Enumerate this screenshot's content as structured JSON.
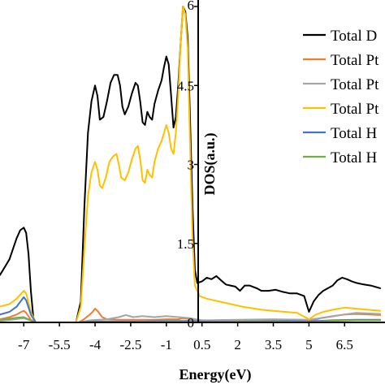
{
  "chart_data": {
    "type": "line",
    "xlabel": "Energy(eV)",
    "ylabel": "DOS(a.u.)",
    "xlim": [
      -8.0,
      8.2
    ],
    "ylim": [
      0,
      6
    ],
    "x_ticks": [
      "-7",
      "-5.5",
      "-4",
      "-2.5",
      "-1",
      "0.5",
      "2",
      "3.5",
      "5",
      "6.5"
    ],
    "x_tick_values": [
      -7,
      -5.5,
      -4,
      -2.5,
      -1,
      0.5,
      2,
      3.5,
      5,
      6.5
    ],
    "y_ticks": [
      "0",
      "1.5",
      "3",
      "4.5",
      "6"
    ],
    "y_tick_values": [
      0,
      1.5,
      3,
      4.5,
      6
    ],
    "legend_position": "top-right",
    "series": [
      {
        "name": "Total D",
        "color": "#000000",
        "points": [
          [
            -8.0,
            0.9
          ],
          [
            -7.8,
            1.05
          ],
          [
            -7.6,
            1.2
          ],
          [
            -7.45,
            1.4
          ],
          [
            -7.3,
            1.6
          ],
          [
            -7.15,
            1.75
          ],
          [
            -7.0,
            1.8
          ],
          [
            -6.9,
            1.7
          ],
          [
            -6.8,
            1.3
          ],
          [
            -6.7,
            0.6
          ],
          [
            -6.6,
            0.1
          ],
          [
            -6.5,
            0.0
          ],
          [
            -5.0,
            0.0
          ],
          [
            -4.8,
            0.0
          ],
          [
            -4.6,
            0.4
          ],
          [
            -4.45,
            2.2
          ],
          [
            -4.3,
            3.6
          ],
          [
            -4.15,
            4.2
          ],
          [
            -4.0,
            4.5
          ],
          [
            -3.9,
            4.3
          ],
          [
            -3.8,
            3.85
          ],
          [
            -3.65,
            3.9
          ],
          [
            -3.5,
            4.2
          ],
          [
            -3.35,
            4.55
          ],
          [
            -3.2,
            4.7
          ],
          [
            -3.05,
            4.7
          ],
          [
            -2.95,
            4.5
          ],
          [
            -2.85,
            4.1
          ],
          [
            -2.75,
            3.95
          ],
          [
            -2.6,
            4.1
          ],
          [
            -2.45,
            4.35
          ],
          [
            -2.3,
            4.55
          ],
          [
            -2.2,
            4.5
          ],
          [
            -2.1,
            4.2
          ],
          [
            -2.0,
            3.8
          ],
          [
            -1.9,
            3.75
          ],
          [
            -1.8,
            4.0
          ],
          [
            -1.7,
            3.9
          ],
          [
            -1.6,
            3.85
          ],
          [
            -1.5,
            4.15
          ],
          [
            -1.35,
            4.4
          ],
          [
            -1.2,
            4.6
          ],
          [
            -1.1,
            4.85
          ],
          [
            -1.0,
            5.05
          ],
          [
            -0.9,
            4.9
          ],
          [
            -0.8,
            4.3
          ],
          [
            -0.7,
            3.7
          ],
          [
            -0.6,
            3.9
          ],
          [
            -0.5,
            4.5
          ],
          [
            -0.4,
            5.3
          ],
          [
            -0.3,
            6.0
          ],
          [
            -0.2,
            5.9
          ],
          [
            -0.1,
            5.4
          ],
          [
            0.0,
            3.8
          ],
          [
            0.1,
            2.2
          ],
          [
            0.2,
            1.0
          ],
          [
            0.3,
            0.75
          ],
          [
            0.5,
            0.78
          ],
          [
            0.7,
            0.85
          ],
          [
            0.9,
            0.82
          ],
          [
            1.1,
            0.88
          ],
          [
            1.3,
            0.8
          ],
          [
            1.5,
            0.72
          ],
          [
            1.7,
            0.7
          ],
          [
            1.9,
            0.68
          ],
          [
            2.1,
            0.6
          ],
          [
            2.3,
            0.7
          ],
          [
            2.5,
            0.7
          ],
          [
            2.8,
            0.65
          ],
          [
            3.0,
            0.6
          ],
          [
            3.3,
            0.6
          ],
          [
            3.6,
            0.62
          ],
          [
            3.9,
            0.58
          ],
          [
            4.2,
            0.55
          ],
          [
            4.5,
            0.55
          ],
          [
            4.8,
            0.5
          ],
          [
            5.0,
            0.2
          ],
          [
            5.2,
            0.4
          ],
          [
            5.4,
            0.52
          ],
          [
            5.6,
            0.6
          ],
          [
            5.8,
            0.65
          ],
          [
            6.0,
            0.7
          ],
          [
            6.2,
            0.8
          ],
          [
            6.4,
            0.85
          ],
          [
            6.6,
            0.82
          ],
          [
            6.8,
            0.78
          ],
          [
            7.0,
            0.75
          ],
          [
            7.3,
            0.72
          ],
          [
            7.6,
            0.7
          ],
          [
            8.0,
            0.65
          ]
        ]
      },
      {
        "name": "Total Pt",
        "color": "#ed7d31",
        "points": [
          [
            -8.0,
            0.06
          ],
          [
            -7.6,
            0.1
          ],
          [
            -7.3,
            0.15
          ],
          [
            -7.1,
            0.2
          ],
          [
            -7.0,
            0.22
          ],
          [
            -6.9,
            0.18
          ],
          [
            -6.7,
            0.05
          ],
          [
            -6.5,
            0.0
          ],
          [
            -4.7,
            0.0
          ],
          [
            -4.5,
            0.05
          ],
          [
            -4.3,
            0.12
          ],
          [
            -4.1,
            0.2
          ],
          [
            -4.0,
            0.26
          ],
          [
            -3.9,
            0.22
          ],
          [
            -3.7,
            0.1
          ],
          [
            -3.5,
            0.06
          ],
          [
            -3.0,
            0.05
          ],
          [
            -2.5,
            0.05
          ],
          [
            -2.0,
            0.05
          ],
          [
            -1.5,
            0.05
          ],
          [
            -1.0,
            0.06
          ],
          [
            -0.5,
            0.06
          ],
          [
            -0.3,
            0.08
          ],
          [
            0.0,
            0.06
          ],
          [
            0.5,
            0.03
          ],
          [
            1.5,
            0.03
          ],
          [
            3.0,
            0.03
          ],
          [
            4.5,
            0.04
          ],
          [
            5.0,
            0.02
          ],
          [
            5.5,
            0.08
          ],
          [
            6.5,
            0.15
          ],
          [
            7.0,
            0.16
          ],
          [
            8.0,
            0.14
          ]
        ]
      },
      {
        "name": "Total Pt",
        "color": "#a5a5a5",
        "points": [
          [
            -8.0,
            0.03
          ],
          [
            -7.5,
            0.05
          ],
          [
            -7.2,
            0.07
          ],
          [
            -7.0,
            0.08
          ],
          [
            -6.8,
            0.05
          ],
          [
            -6.5,
            0.0
          ],
          [
            -4.7,
            0.0
          ],
          [
            -4.2,
            0.04
          ],
          [
            -3.5,
            0.06
          ],
          [
            -3.0,
            0.1
          ],
          [
            -2.7,
            0.14
          ],
          [
            -2.4,
            0.1
          ],
          [
            -2.0,
            0.12
          ],
          [
            -1.5,
            0.1
          ],
          [
            -1.0,
            0.12
          ],
          [
            -0.5,
            0.1
          ],
          [
            0.0,
            0.08
          ],
          [
            0.5,
            0.04
          ],
          [
            2.0,
            0.05
          ],
          [
            3.5,
            0.06
          ],
          [
            5.0,
            0.05
          ],
          [
            6.0,
            0.12
          ],
          [
            7.0,
            0.18
          ],
          [
            8.0,
            0.16
          ]
        ]
      },
      {
        "name": "Total Pt",
        "color": "#ffc000",
        "points": [
          [
            -8.0,
            0.3
          ],
          [
            -7.6,
            0.35
          ],
          [
            -7.3,
            0.45
          ],
          [
            -7.1,
            0.55
          ],
          [
            -7.0,
            0.6
          ],
          [
            -6.9,
            0.55
          ],
          [
            -6.7,
            0.2
          ],
          [
            -6.5,
            0.0
          ],
          [
            -4.8,
            0.0
          ],
          [
            -4.6,
            0.3
          ],
          [
            -4.45,
            1.4
          ],
          [
            -4.3,
            2.4
          ],
          [
            -4.15,
            2.85
          ],
          [
            -4.0,
            3.05
          ],
          [
            -3.9,
            2.9
          ],
          [
            -3.8,
            2.6
          ],
          [
            -3.7,
            2.55
          ],
          [
            -3.55,
            2.75
          ],
          [
            -3.4,
            3.05
          ],
          [
            -3.25,
            3.15
          ],
          [
            -3.1,
            3.2
          ],
          [
            -3.0,
            3.0
          ],
          [
            -2.9,
            2.75
          ],
          [
            -2.75,
            2.7
          ],
          [
            -2.6,
            2.85
          ],
          [
            -2.45,
            3.1
          ],
          [
            -2.3,
            3.3
          ],
          [
            -2.2,
            3.35
          ],
          [
            -2.1,
            3.1
          ],
          [
            -2.0,
            2.7
          ],
          [
            -1.9,
            2.65
          ],
          [
            -1.8,
            2.9
          ],
          [
            -1.7,
            2.8
          ],
          [
            -1.6,
            2.75
          ],
          [
            -1.5,
            3.05
          ],
          [
            -1.35,
            3.3
          ],
          [
            -1.2,
            3.45
          ],
          [
            -1.1,
            3.6
          ],
          [
            -1.0,
            3.75
          ],
          [
            -0.9,
            3.6
          ],
          [
            -0.8,
            3.3
          ],
          [
            -0.7,
            3.2
          ],
          [
            -0.6,
            3.6
          ],
          [
            -0.5,
            4.3
          ],
          [
            -0.4,
            5.3
          ],
          [
            -0.3,
            6.0
          ],
          [
            -0.2,
            5.85
          ],
          [
            -0.1,
            5.2
          ],
          [
            0.0,
            3.3
          ],
          [
            0.1,
            1.6
          ],
          [
            0.2,
            0.7
          ],
          [
            0.4,
            0.5
          ],
          [
            0.7,
            0.45
          ],
          [
            1.0,
            0.42
          ],
          [
            1.4,
            0.38
          ],
          [
            1.8,
            0.34
          ],
          [
            2.2,
            0.3
          ],
          [
            2.6,
            0.27
          ],
          [
            3.0,
            0.24
          ],
          [
            3.5,
            0.22
          ],
          [
            4.0,
            0.2
          ],
          [
            4.5,
            0.18
          ],
          [
            5.0,
            0.06
          ],
          [
            5.3,
            0.15
          ],
          [
            5.6,
            0.2
          ],
          [
            6.0,
            0.24
          ],
          [
            6.5,
            0.28
          ],
          [
            7.0,
            0.26
          ],
          [
            8.0,
            0.22
          ]
        ]
      },
      {
        "name": "Total H",
        "color": "#4472c4",
        "points": [
          [
            -8.0,
            0.15
          ],
          [
            -7.6,
            0.2
          ],
          [
            -7.3,
            0.3
          ],
          [
            -7.1,
            0.42
          ],
          [
            -7.0,
            0.48
          ],
          [
            -6.9,
            0.42
          ],
          [
            -6.7,
            0.15
          ],
          [
            -6.5,
            0.0
          ],
          [
            -4.7,
            0.0
          ],
          [
            -4.0,
            0.02
          ],
          [
            -3.0,
            0.02
          ],
          [
            -2.0,
            0.02
          ],
          [
            -1.0,
            0.03
          ],
          [
            0.0,
            0.03
          ],
          [
            0.5,
            0.02
          ],
          [
            2.0,
            0.02
          ],
          [
            4.0,
            0.03
          ],
          [
            5.0,
            0.02
          ],
          [
            6.0,
            0.04
          ],
          [
            7.0,
            0.05
          ],
          [
            8.0,
            0.05
          ]
        ]
      },
      {
        "name": "Total H",
        "color": "#70ad47",
        "points": [
          [
            -8.0,
            0.05
          ],
          [
            -7.6,
            0.07
          ],
          [
            -7.3,
            0.09
          ],
          [
            -7.0,
            0.1
          ],
          [
            -6.8,
            0.06
          ],
          [
            -6.5,
            0.0
          ],
          [
            -4.7,
            0.0
          ],
          [
            -4.0,
            0.01
          ],
          [
            -3.0,
            0.01
          ],
          [
            -2.0,
            0.01
          ],
          [
            -1.0,
            0.02
          ],
          [
            0.0,
            0.02
          ],
          [
            0.5,
            0.01
          ],
          [
            2.0,
            0.02
          ],
          [
            4.0,
            0.02
          ],
          [
            5.0,
            0.01
          ],
          [
            6.0,
            0.03
          ],
          [
            7.0,
            0.04
          ],
          [
            8.0,
            0.04
          ]
        ]
      }
    ]
  }
}
